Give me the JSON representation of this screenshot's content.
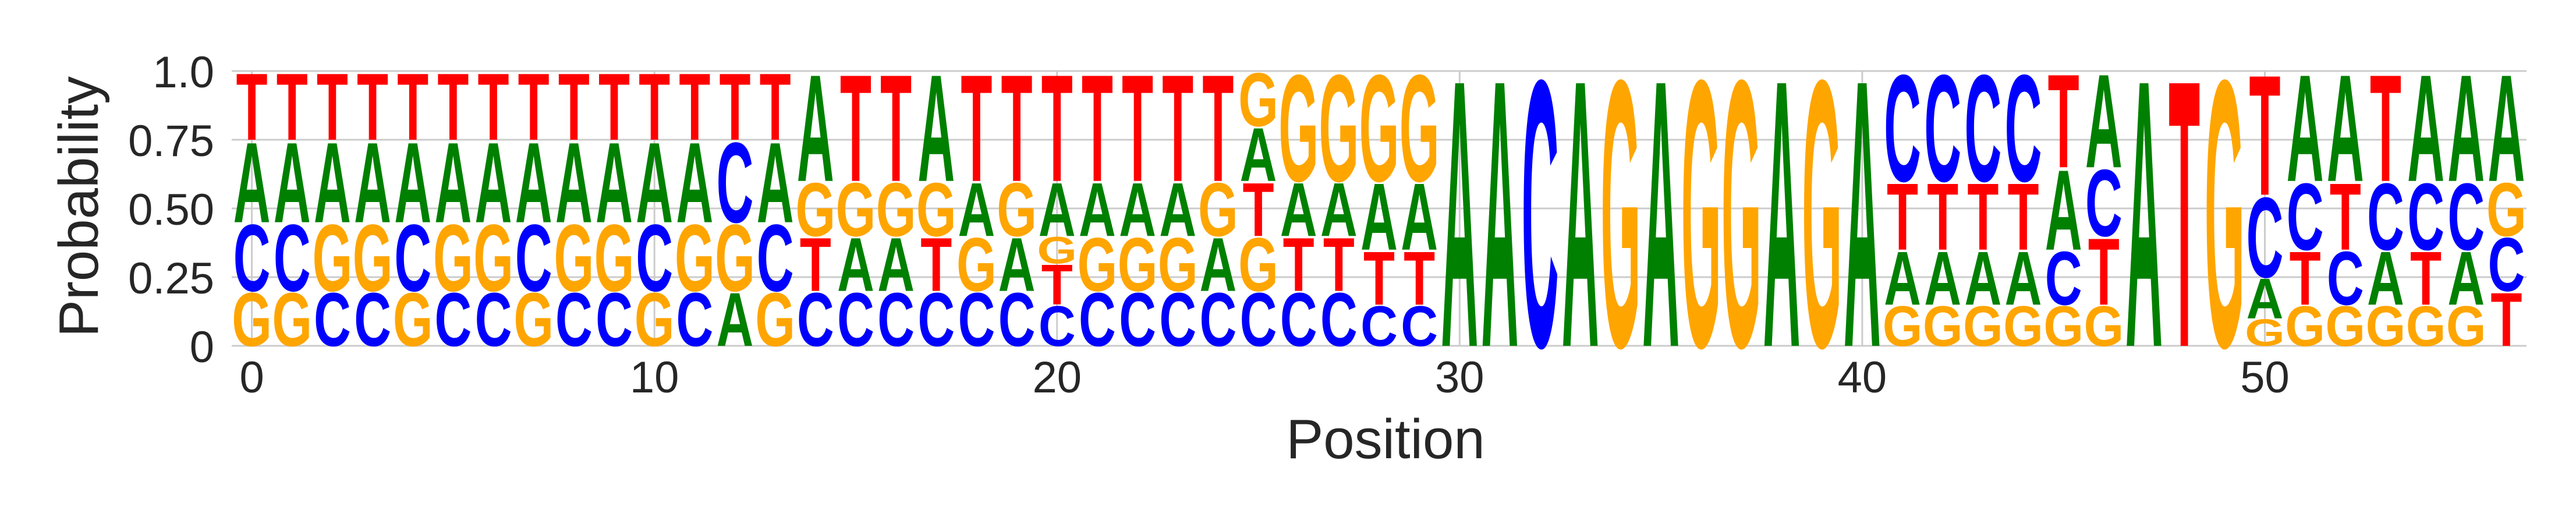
{
  "chart_data": {
    "type": "sequence-logo",
    "title": "",
    "xlabel": "Position",
    "ylabel": "Probability",
    "ylim": [
      0,
      1
    ],
    "yticks": [
      {
        "value": 0,
        "label": "0"
      },
      {
        "value": 0.25,
        "label": "0.25"
      },
      {
        "value": 0.5,
        "label": "0.50"
      },
      {
        "value": 0.75,
        "label": "0.75"
      },
      {
        "value": 1.0,
        "label": "1.0"
      }
    ],
    "xticks": [
      {
        "value": 0,
        "label": "0"
      },
      {
        "value": 10,
        "label": "10"
      },
      {
        "value": 20,
        "label": "20"
      },
      {
        "value": 30,
        "label": "30"
      },
      {
        "value": 40,
        "label": "40"
      },
      {
        "value": 50,
        "label": "50"
      }
    ],
    "xlim": [
      -0.5,
      56.5
    ],
    "grid": true,
    "colors": {
      "A": "#008000",
      "C": "#0000ff",
      "G": "#ffa500",
      "T": "#ff0000"
    },
    "positions": [
      {
        "x": 0,
        "stack": [
          [
            "G",
            0.2
          ],
          [
            "C",
            0.25
          ],
          [
            "A",
            0.3
          ],
          [
            "T",
            0.25
          ]
        ]
      },
      {
        "x": 1,
        "stack": [
          [
            "G",
            0.2
          ],
          [
            "C",
            0.25
          ],
          [
            "A",
            0.3
          ],
          [
            "T",
            0.25
          ]
        ]
      },
      {
        "x": 2,
        "stack": [
          [
            "C",
            0.2
          ],
          [
            "G",
            0.25
          ],
          [
            "A",
            0.3
          ],
          [
            "T",
            0.25
          ]
        ]
      },
      {
        "x": 3,
        "stack": [
          [
            "C",
            0.2
          ],
          [
            "G",
            0.25
          ],
          [
            "A",
            0.3
          ],
          [
            "T",
            0.25
          ]
        ]
      },
      {
        "x": 4,
        "stack": [
          [
            "G",
            0.2
          ],
          [
            "C",
            0.25
          ],
          [
            "A",
            0.3
          ],
          [
            "T",
            0.25
          ]
        ]
      },
      {
        "x": 5,
        "stack": [
          [
            "C",
            0.2
          ],
          [
            "G",
            0.25
          ],
          [
            "A",
            0.3
          ],
          [
            "T",
            0.25
          ]
        ]
      },
      {
        "x": 6,
        "stack": [
          [
            "C",
            0.2
          ],
          [
            "G",
            0.25
          ],
          [
            "A",
            0.3
          ],
          [
            "T",
            0.25
          ]
        ]
      },
      {
        "x": 7,
        "stack": [
          [
            "G",
            0.2
          ],
          [
            "C",
            0.25
          ],
          [
            "A",
            0.3
          ],
          [
            "T",
            0.25
          ]
        ]
      },
      {
        "x": 8,
        "stack": [
          [
            "C",
            0.2
          ],
          [
            "G",
            0.25
          ],
          [
            "A",
            0.3
          ],
          [
            "T",
            0.25
          ]
        ]
      },
      {
        "x": 9,
        "stack": [
          [
            "C",
            0.2
          ],
          [
            "G",
            0.25
          ],
          [
            "A",
            0.3
          ],
          [
            "T",
            0.25
          ]
        ]
      },
      {
        "x": 10,
        "stack": [
          [
            "G",
            0.2
          ],
          [
            "C",
            0.25
          ],
          [
            "A",
            0.3
          ],
          [
            "T",
            0.25
          ]
        ]
      },
      {
        "x": 11,
        "stack": [
          [
            "C",
            0.2
          ],
          [
            "G",
            0.25
          ],
          [
            "A",
            0.3
          ],
          [
            "T",
            0.25
          ]
        ]
      },
      {
        "x": 12,
        "stack": [
          [
            "A",
            0.2
          ],
          [
            "G",
            0.25
          ],
          [
            "C",
            0.3
          ],
          [
            "T",
            0.25
          ]
        ]
      },
      {
        "x": 13,
        "stack": [
          [
            "G",
            0.2
          ],
          [
            "C",
            0.25
          ],
          [
            "A",
            0.3
          ],
          [
            "T",
            0.25
          ]
        ]
      },
      {
        "x": 14,
        "stack": [
          [
            "C",
            0.2
          ],
          [
            "T",
            0.2
          ],
          [
            "G",
            0.2
          ],
          [
            "A",
            0.4
          ]
        ]
      },
      {
        "x": 15,
        "stack": [
          [
            "C",
            0.2
          ],
          [
            "A",
            0.2
          ],
          [
            "G",
            0.2
          ],
          [
            "T",
            0.4
          ]
        ]
      },
      {
        "x": 16,
        "stack": [
          [
            "C",
            0.2
          ],
          [
            "A",
            0.2
          ],
          [
            "G",
            0.2
          ],
          [
            "T",
            0.4
          ]
        ]
      },
      {
        "x": 17,
        "stack": [
          [
            "C",
            0.2
          ],
          [
            "T",
            0.2
          ],
          [
            "G",
            0.2
          ],
          [
            "A",
            0.4
          ]
        ]
      },
      {
        "x": 18,
        "stack": [
          [
            "C",
            0.2
          ],
          [
            "G",
            0.2
          ],
          [
            "A",
            0.2
          ],
          [
            "T",
            0.4
          ]
        ]
      },
      {
        "x": 19,
        "stack": [
          [
            "C",
            0.2
          ],
          [
            "A",
            0.2
          ],
          [
            "G",
            0.2
          ],
          [
            "T",
            0.4
          ]
        ]
      },
      {
        "x": 20,
        "stack": [
          [
            "C",
            0.15
          ],
          [
            "T",
            0.15
          ],
          [
            "G",
            0.1
          ],
          [
            "A",
            0.2
          ],
          [
            "T",
            0.4
          ]
        ]
      },
      {
        "x": 21,
        "stack": [
          [
            "C",
            0.2
          ],
          [
            "G",
            0.2
          ],
          [
            "A",
            0.2
          ],
          [
            "T",
            0.4
          ]
        ]
      },
      {
        "x": 22,
        "stack": [
          [
            "C",
            0.2
          ],
          [
            "G",
            0.2
          ],
          [
            "A",
            0.2
          ],
          [
            "T",
            0.4
          ]
        ]
      },
      {
        "x": 23,
        "stack": [
          [
            "C",
            0.2
          ],
          [
            "G",
            0.2
          ],
          [
            "A",
            0.2
          ],
          [
            "T",
            0.4
          ]
        ]
      },
      {
        "x": 24,
        "stack": [
          [
            "C",
            0.2
          ],
          [
            "A",
            0.2
          ],
          [
            "G",
            0.2
          ],
          [
            "T",
            0.4
          ]
        ]
      },
      {
        "x": 25,
        "stack": [
          [
            "C",
            0.2
          ],
          [
            "G",
            0.2
          ],
          [
            "T",
            0.2
          ],
          [
            "A",
            0.2
          ],
          [
            "G",
            0.2
          ]
        ]
      },
      {
        "x": 26,
        "stack": [
          [
            "C",
            0.2
          ],
          [
            "T",
            0.2
          ],
          [
            "A",
            0.2
          ],
          [
            "G",
            0.4
          ]
        ]
      },
      {
        "x": 27,
        "stack": [
          [
            "C",
            0.2
          ],
          [
            "T",
            0.2
          ],
          [
            "A",
            0.2
          ],
          [
            "G",
            0.4
          ]
        ]
      },
      {
        "x": 28,
        "stack": [
          [
            "C",
            0.15
          ],
          [
            "T",
            0.2
          ],
          [
            "A",
            0.25
          ],
          [
            "G",
            0.4
          ]
        ]
      },
      {
        "x": 29,
        "stack": [
          [
            "C",
            0.15
          ],
          [
            "T",
            0.2
          ],
          [
            "A",
            0.25
          ],
          [
            "G",
            0.4
          ]
        ]
      },
      {
        "x": 30,
        "stack": [
          [
            "A",
            1.0
          ]
        ]
      },
      {
        "x": 31,
        "stack": [
          [
            "A",
            1.0
          ]
        ]
      },
      {
        "x": 32,
        "stack": [
          [
            "C",
            1.0
          ]
        ]
      },
      {
        "x": 33,
        "stack": [
          [
            "A",
            1.0
          ]
        ]
      },
      {
        "x": 34,
        "stack": [
          [
            "G",
            1.0
          ]
        ]
      },
      {
        "x": 35,
        "stack": [
          [
            "A",
            1.0
          ]
        ]
      },
      {
        "x": 36,
        "stack": [
          [
            "G",
            1.0
          ]
        ]
      },
      {
        "x": 37,
        "stack": [
          [
            "G",
            1.0
          ]
        ]
      },
      {
        "x": 38,
        "stack": [
          [
            "A",
            1.0
          ]
        ]
      },
      {
        "x": 39,
        "stack": [
          [
            "G",
            1.0
          ]
        ]
      },
      {
        "x": 40,
        "stack": [
          [
            "A",
            1.0
          ]
        ]
      },
      {
        "x": 41,
        "stack": [
          [
            "G",
            0.15
          ],
          [
            "A",
            0.2
          ],
          [
            "T",
            0.25
          ],
          [
            "C",
            0.4
          ]
        ]
      },
      {
        "x": 42,
        "stack": [
          [
            "G",
            0.15
          ],
          [
            "A",
            0.2
          ],
          [
            "T",
            0.25
          ],
          [
            "C",
            0.4
          ]
        ]
      },
      {
        "x": 43,
        "stack": [
          [
            "G",
            0.15
          ],
          [
            "A",
            0.2
          ],
          [
            "T",
            0.25
          ],
          [
            "C",
            0.4
          ]
        ]
      },
      {
        "x": 44,
        "stack": [
          [
            "G",
            0.15
          ],
          [
            "A",
            0.2
          ],
          [
            "T",
            0.25
          ],
          [
            "C",
            0.4
          ]
        ]
      },
      {
        "x": 45,
        "stack": [
          [
            "G",
            0.15
          ],
          [
            "C",
            0.2
          ],
          [
            "A",
            0.3
          ],
          [
            "T",
            0.35
          ]
        ]
      },
      {
        "x": 46,
        "stack": [
          [
            "G",
            0.15
          ],
          [
            "T",
            0.25
          ],
          [
            "C",
            0.25
          ],
          [
            "A",
            0.35
          ]
        ]
      },
      {
        "x": 47,
        "stack": [
          [
            "A",
            1.0
          ]
        ]
      },
      {
        "x": 48,
        "stack": [
          [
            "T",
            1.0
          ]
        ]
      },
      {
        "x": 49,
        "stack": [
          [
            "G",
            1.0
          ]
        ]
      },
      {
        "x": 50,
        "stack": [
          [
            "G",
            0.1
          ],
          [
            "A",
            0.15
          ],
          [
            "C",
            0.3
          ],
          [
            "T",
            0.45
          ]
        ]
      },
      {
        "x": 51,
        "stack": [
          [
            "G",
            0.15
          ],
          [
            "T",
            0.2
          ],
          [
            "C",
            0.25
          ],
          [
            "A",
            0.4
          ]
        ]
      },
      {
        "x": 52,
        "stack": [
          [
            "G",
            0.15
          ],
          [
            "C",
            0.2
          ],
          [
            "T",
            0.25
          ],
          [
            "A",
            0.4
          ]
        ]
      },
      {
        "x": 53,
        "stack": [
          [
            "G",
            0.15
          ],
          [
            "A",
            0.2
          ],
          [
            "C",
            0.25
          ],
          [
            "T",
            0.4
          ]
        ]
      },
      {
        "x": 54,
        "stack": [
          [
            "G",
            0.15
          ],
          [
            "T",
            0.2
          ],
          [
            "C",
            0.25
          ],
          [
            "A",
            0.4
          ]
        ]
      },
      {
        "x": 55,
        "stack": [
          [
            "G",
            0.15
          ],
          [
            "A",
            0.2
          ],
          [
            "C",
            0.25
          ],
          [
            "A",
            0.4
          ]
        ]
      },
      {
        "x": 56,
        "stack": [
          [
            "T",
            0.2
          ],
          [
            "C",
            0.2
          ],
          [
            "G",
            0.2
          ],
          [
            "A",
            0.4
          ]
        ]
      }
    ]
  }
}
